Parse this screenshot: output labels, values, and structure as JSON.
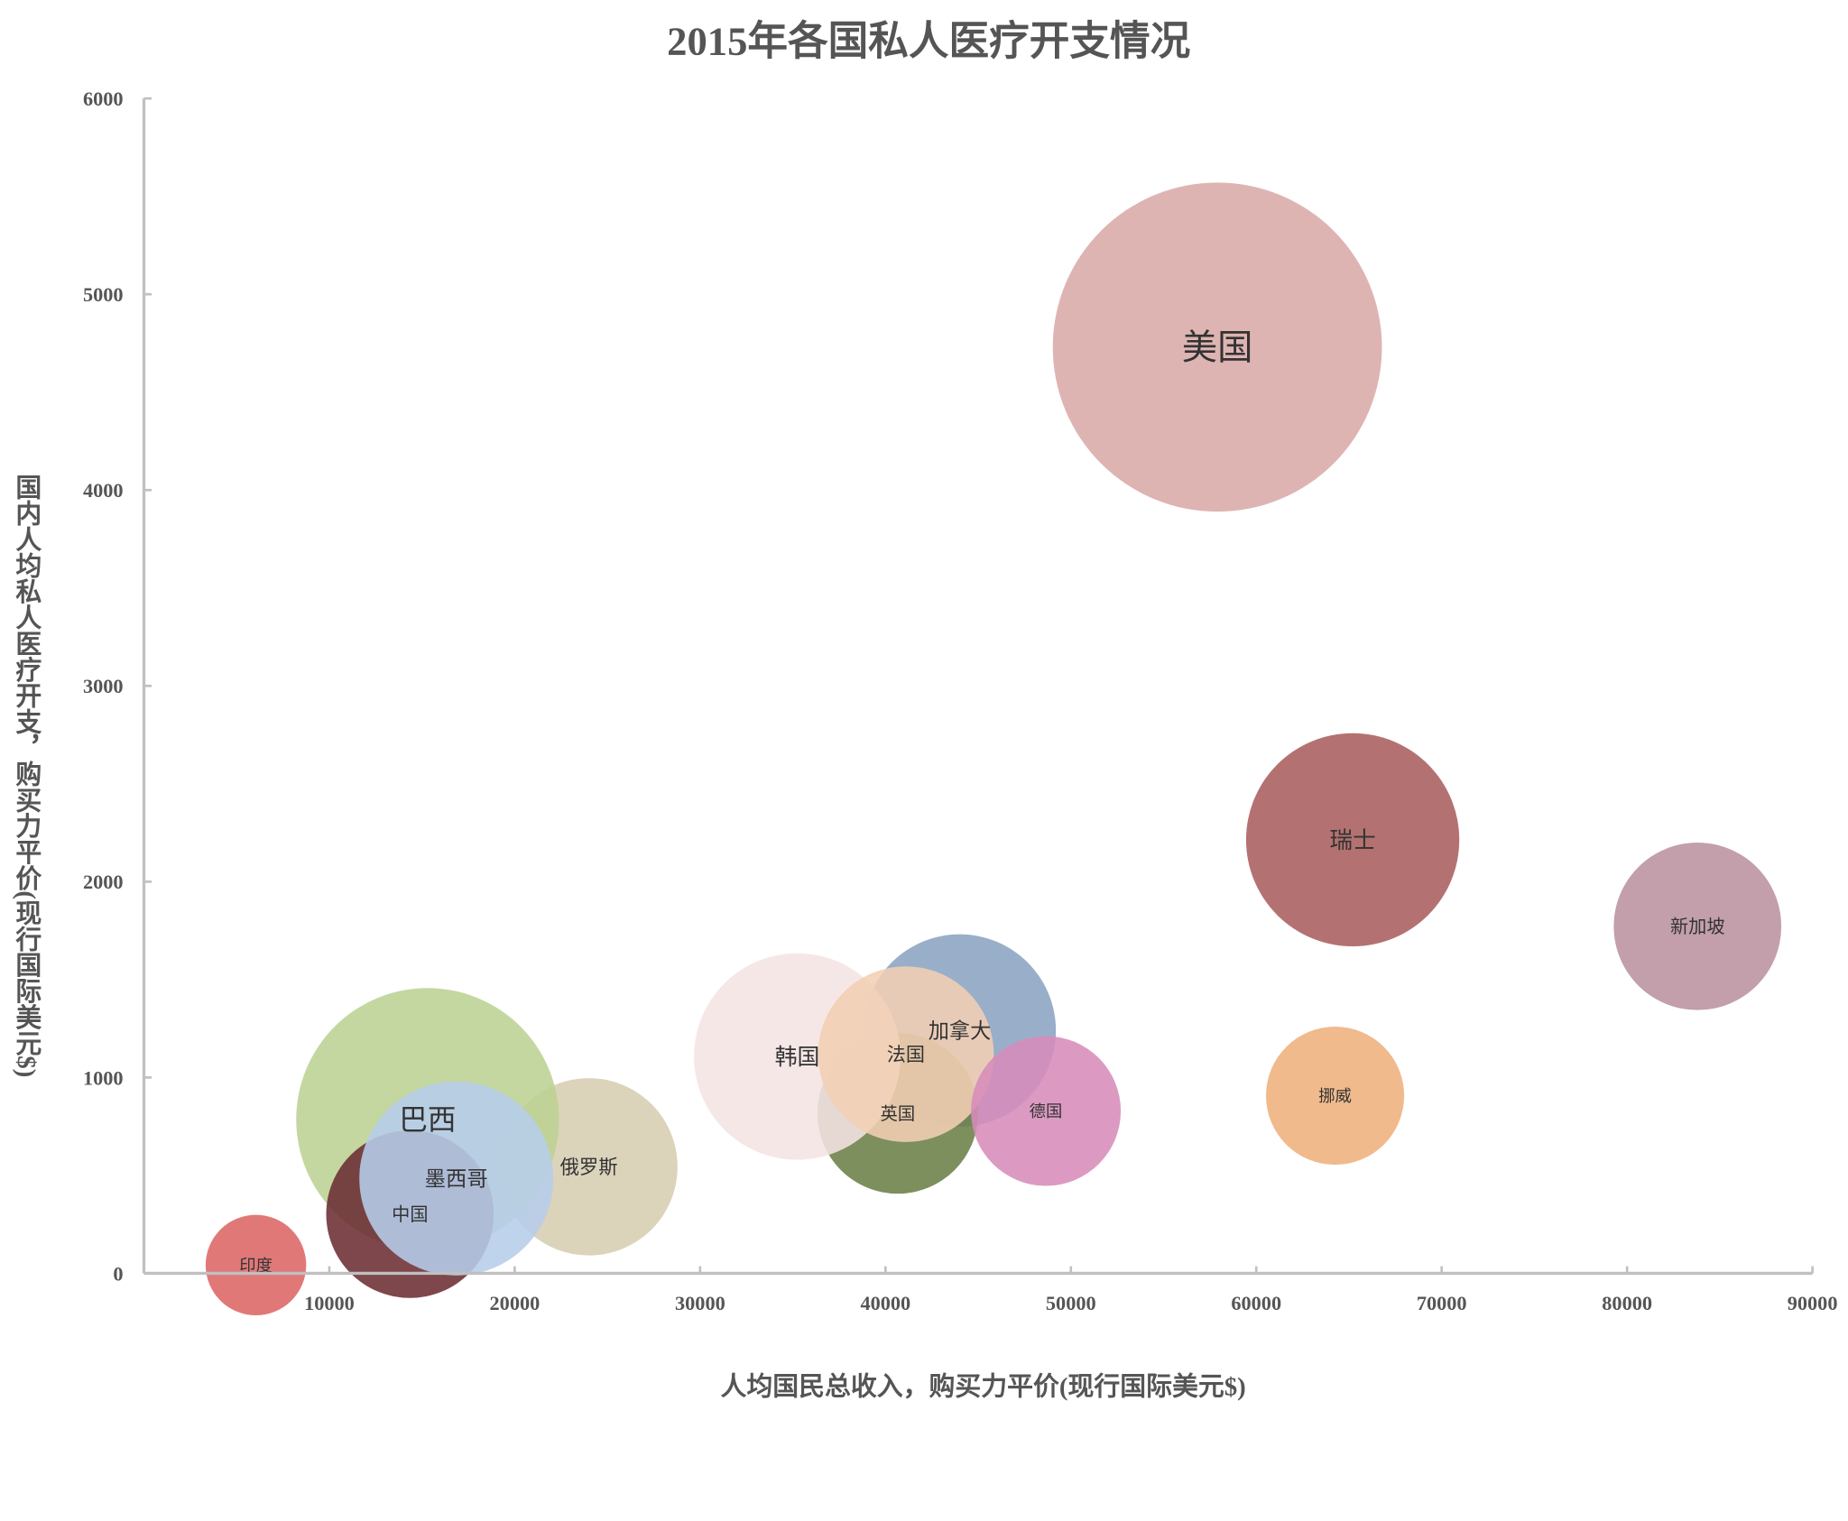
{
  "chart_data": {
    "type": "scatter",
    "subtype": "bubble",
    "title": "2015年各国私人医疗开支情况",
    "xlabel": "人均国民总收入，购买力平价(现行国际美元$)",
    "ylabel": "国内人均私人医疗开支，购买力平价(现行国际美元$)",
    "xlim": [
      0,
      90000
    ],
    "ylim": [
      0,
      6000
    ],
    "xticks": [
      "10000",
      "20000",
      "30000",
      "40000",
      "50000",
      "60000",
      "70000",
      "80000",
      "90000"
    ],
    "yticks": [
      "0",
      "1000",
      "2000",
      "3000",
      "4000",
      "5000",
      "6000"
    ],
    "grid": false,
    "legend": "none",
    "size_note": "relative bubble size",
    "points": [
      {
        "name": "美国",
        "x": 57900,
        "y": 4730,
        "size": 193,
        "color": "#d9aaa9"
      },
      {
        "name": "瑞士",
        "x": 65200,
        "y": 2214,
        "size": 81,
        "color": "#a85e5d"
      },
      {
        "name": "新加坡",
        "x": 83800,
        "y": 1772,
        "size": 50,
        "color": "#b9929f"
      },
      {
        "name": "挪威",
        "x": 64250,
        "y": 907,
        "size": 34,
        "color": "#eeb07d"
      },
      {
        "name": "加拿大",
        "x": 44000,
        "y": 1240,
        "size": 66,
        "color": "#8ba4c2"
      },
      {
        "name": "英国",
        "x": 40660,
        "y": 817,
        "size": 46,
        "color": "#6a8047"
      },
      {
        "name": "韩国",
        "x": 35240,
        "y": 1107,
        "size": 76,
        "color": "#f5e4e4"
      },
      {
        "name": "法国",
        "x": 41100,
        "y": 1119,
        "size": 55,
        "color": "#f2cfb4"
      },
      {
        "name": "德国",
        "x": 48650,
        "y": 829,
        "size": 40,
        "color": "#d78cbb"
      },
      {
        "name": "俄罗斯",
        "x": 24000,
        "y": 544,
        "size": 56,
        "color": "#d6cdb1"
      },
      {
        "name": "巴西",
        "x": 15300,
        "y": 786,
        "size": 123,
        "color": "#bcd293"
      },
      {
        "name": "中国",
        "x": 14350,
        "y": 302,
        "size": 50,
        "color": "#6b2e33"
      },
      {
        "name": "墨西哥",
        "x": 16850,
        "y": 484,
        "size": 67,
        "color": "#b6cdea"
      },
      {
        "name": "印度",
        "x": 6040,
        "y": 42,
        "size": 18,
        "color": "#dd6565"
      }
    ]
  }
}
